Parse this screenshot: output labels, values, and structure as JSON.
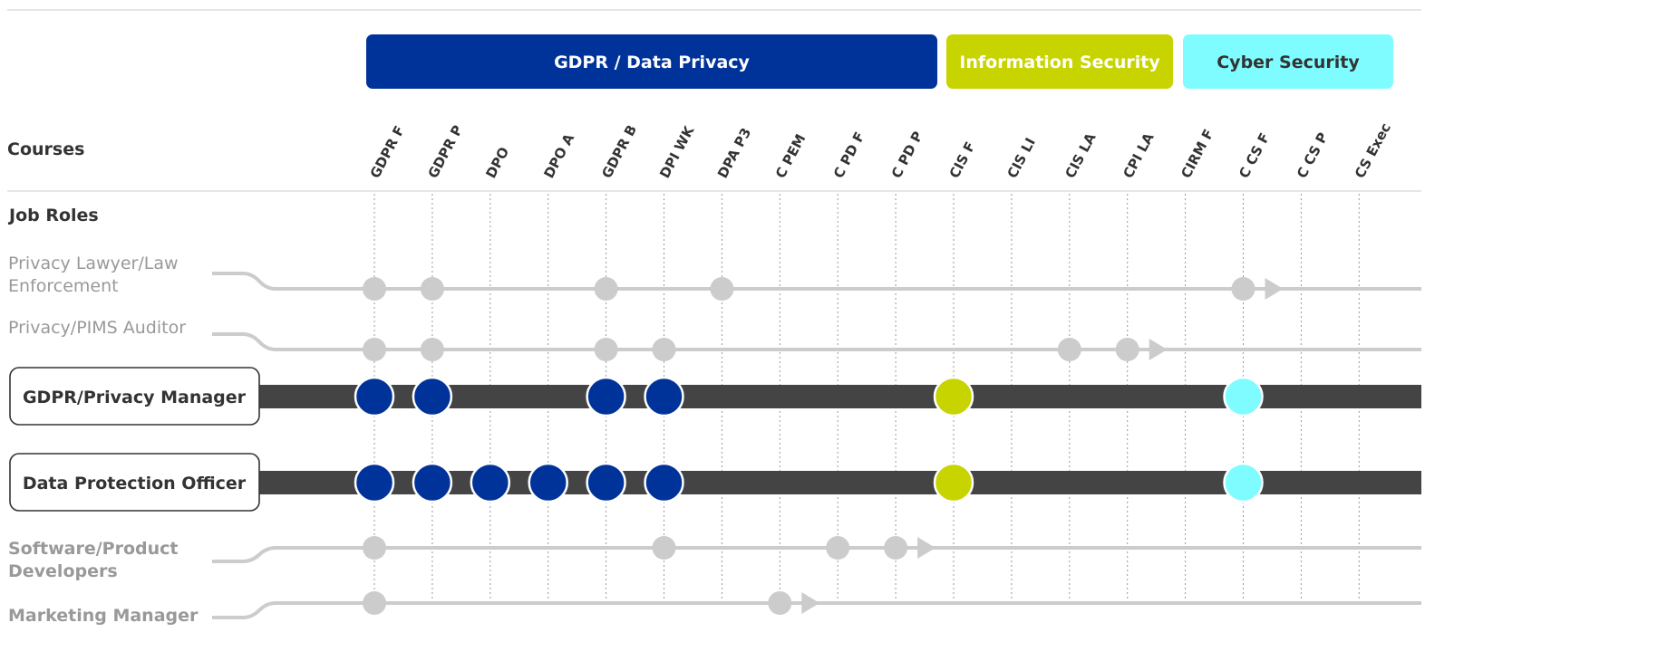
{
  "colors": {
    "gdpr": "#00339A",
    "infosec": "#C8D400",
    "cyber": "#7FFCFF",
    "minor_track": "#CCCCCC",
    "major_track": "#444444",
    "grid": "#999999",
    "text_dark": "#333333",
    "text_gray": "#999999"
  },
  "categories": [
    {
      "name": "GDPR / Data Privacy",
      "color_key": "gdpr",
      "text_color": "#FFFFFF"
    },
    {
      "name": "Information Security",
      "color_key": "infosec",
      "text_color": "#FFFFFF"
    },
    {
      "name": "Cyber Security",
      "color_key": "cyber",
      "text_color": "#333333"
    }
  ],
  "headers": {
    "courses": "Courses",
    "job_roles": "Job Roles"
  },
  "courses": [
    "GDPR F",
    "GDPR P",
    "DPO",
    "DPO A",
    "GDPR B",
    "DPI WK",
    "DPA P3",
    "C PEM",
    "C PD F",
    "C PD P",
    "CIS F",
    "CIS LI",
    "CIS LA",
    "CPI LA",
    "CIRM F",
    "C CS F",
    "C CS P",
    "CS Exec"
  ],
  "roles": [
    {
      "name_lines": [
        "Privacy Lawyer/Law",
        "Enforcement"
      ],
      "style": "minor",
      "courses": [
        "GDPR F",
        "GDPR P",
        "GDPR B",
        "DPA P3",
        "C CS F"
      ],
      "arrow_after": "C CS F"
    },
    {
      "name_lines": [
        "Privacy/PIMS Auditor"
      ],
      "style": "minor",
      "courses": [
        "GDPR F",
        "GDPR P",
        "GDPR B",
        "DPI WK",
        "CIS LA",
        "CPI LA"
      ],
      "arrow_after": "CPI LA"
    },
    {
      "name_lines": [
        "GDPR/Privacy Manager"
      ],
      "style": "major",
      "courses": [
        "GDPR F",
        "GDPR P",
        "GDPR B",
        "DPI WK",
        "CIS F",
        "C CS F"
      ]
    },
    {
      "name_lines": [
        "Data Protection Officer"
      ],
      "style": "major",
      "courses": [
        "GDPR F",
        "GDPR P",
        "DPO",
        "DPO A",
        "GDPR B",
        "DPI WK",
        "CIS F",
        "C CS F"
      ]
    },
    {
      "name_lines": [
        "Software/Product",
        "Developers"
      ],
      "style": "minor",
      "courses": [
        "GDPR F",
        "DPI WK",
        "C PD F",
        "C PD P"
      ],
      "arrow_after": "C PD P"
    },
    {
      "name_lines": [
        "Marketing Manager"
      ],
      "style": "minor",
      "courses": [
        "GDPR F",
        "C PEM"
      ],
      "arrow_after": "C PEM"
    }
  ]
}
